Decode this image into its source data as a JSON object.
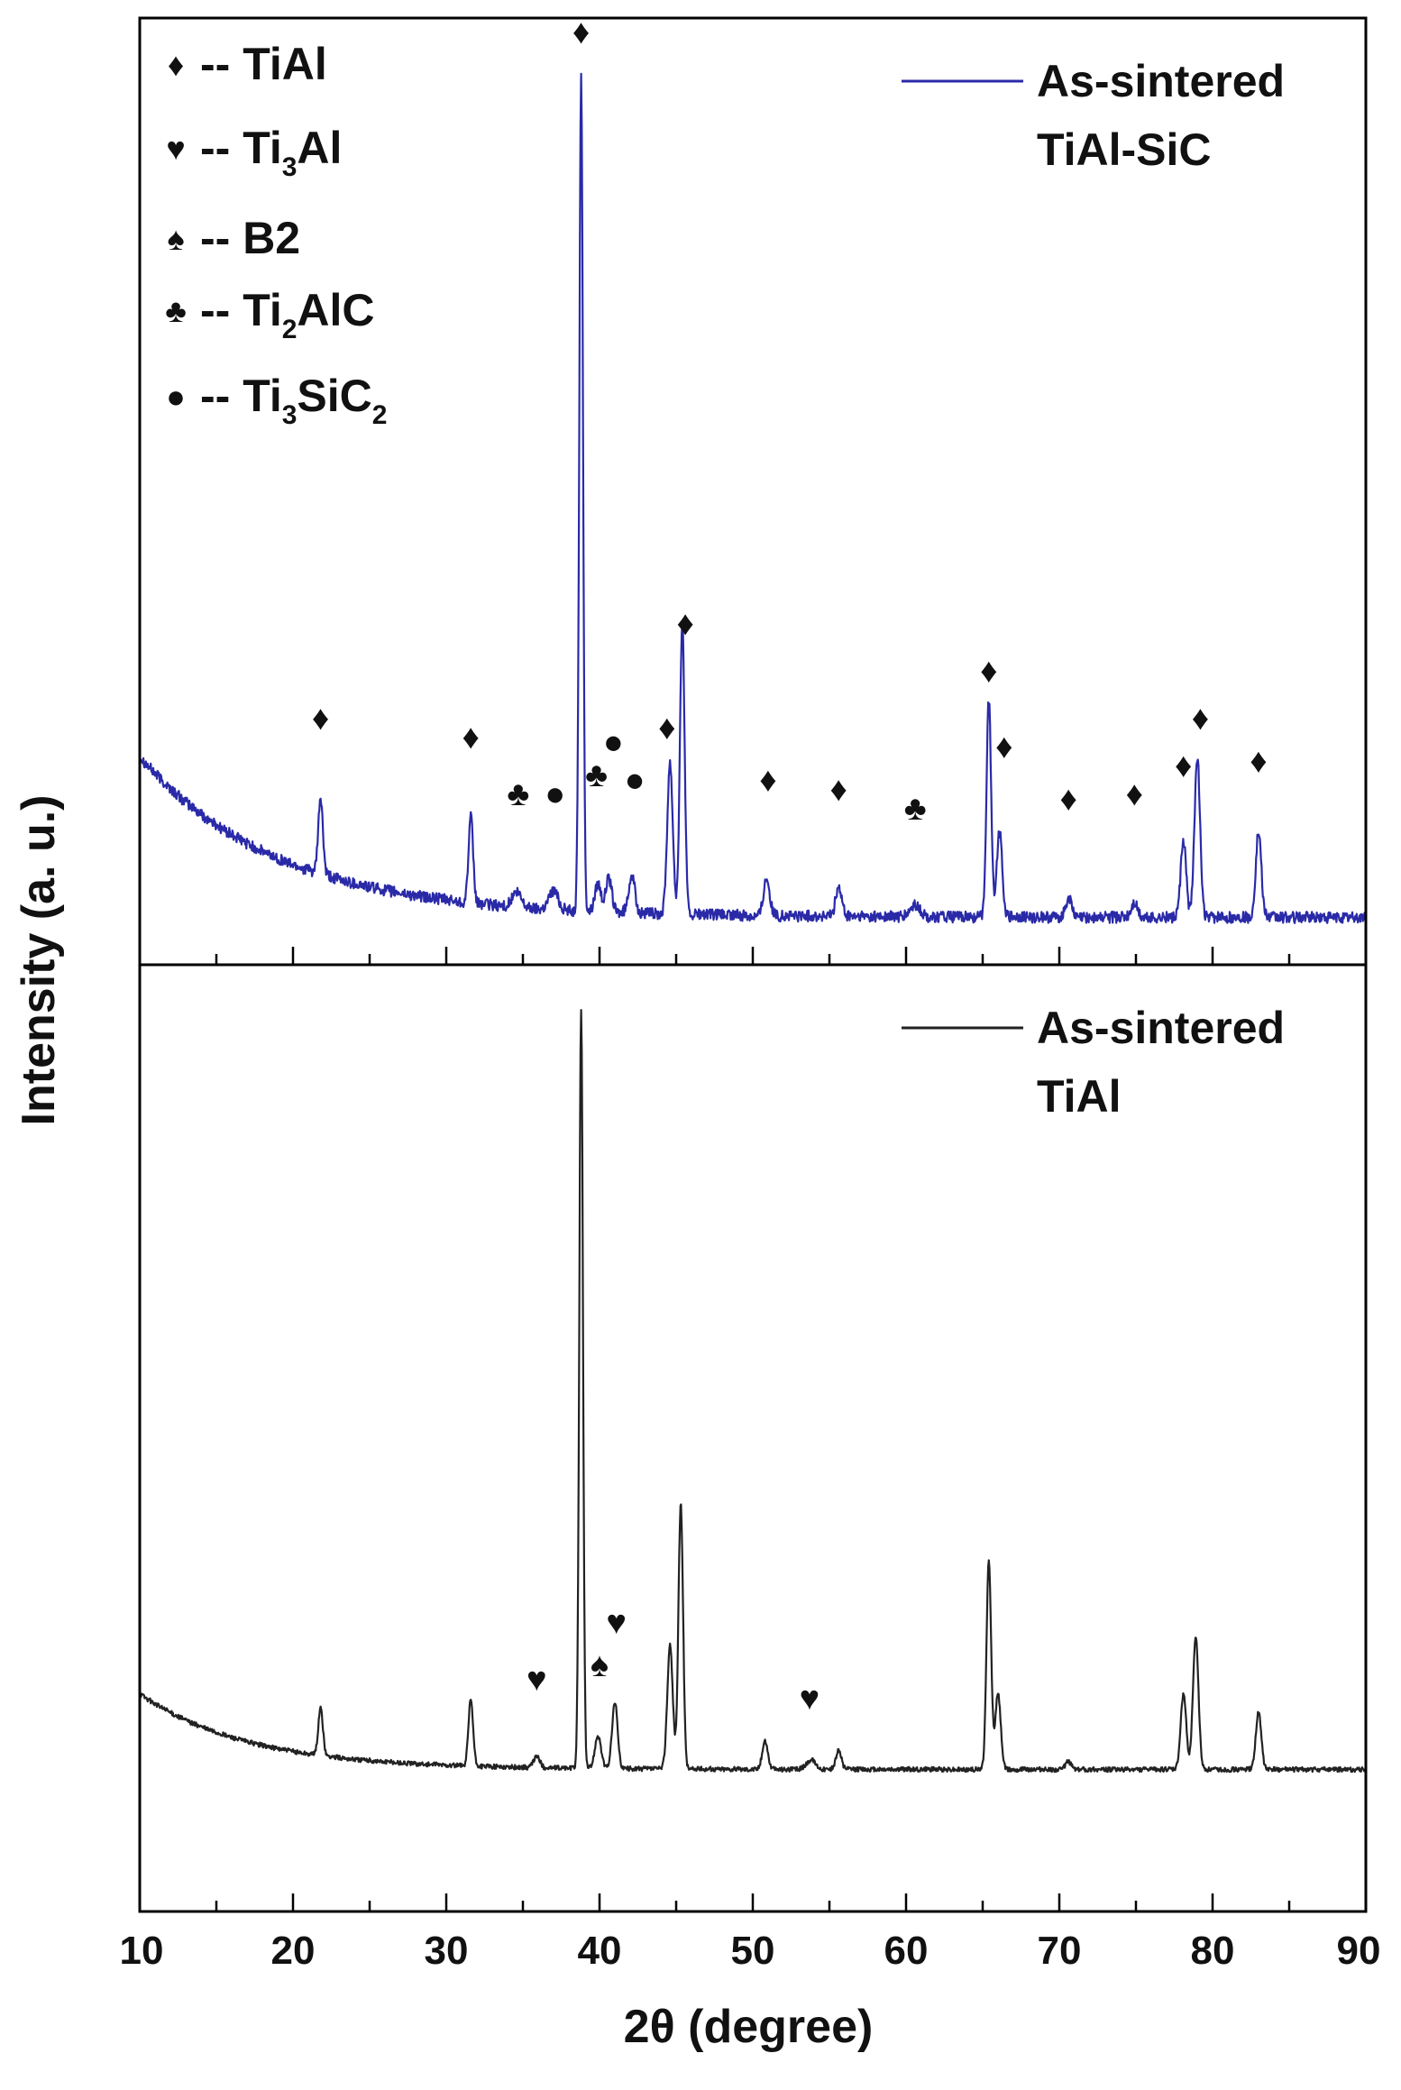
{
  "chart_data": {
    "type": "line",
    "xlabel": "2θ (degree)",
    "ylabel": "Intensity (a. u.)",
    "xlim": [
      10,
      90
    ],
    "xticks": [
      "10",
      "20",
      "30",
      "40",
      "50",
      "60",
      "70",
      "80",
      "90"
    ],
    "grid": false,
    "panels": [
      {
        "id": "top",
        "legend": {
          "line1": "As-sintered",
          "line2": "TiAl-SiC",
          "color": "#2a2aa8",
          "position": "top-right"
        },
        "series": {
          "name": "As-sintered TiAl-SiC",
          "color": "#2a2aa8",
          "baseline": {
            "decay_start": 10,
            "decay_amplitude": 0.17,
            "decay_scale": 9,
            "floor": 0.05
          },
          "peaks": [
            {
              "x": 21.8,
              "h": 0.08,
              "w": 0.15
            },
            {
              "x": 31.6,
              "h": 0.09,
              "w": 0.15
            },
            {
              "x": 34.6,
              "h": 0.015,
              "w": 0.3
            },
            {
              "x": 37.0,
              "h": 0.02,
              "w": 0.3
            },
            {
              "x": 38.8,
              "h": 0.88,
              "w": 0.12
            },
            {
              "x": 39.9,
              "h": 0.03,
              "w": 0.2
            },
            {
              "x": 40.6,
              "h": 0.035,
              "w": 0.2
            },
            {
              "x": 42.1,
              "h": 0.04,
              "w": 0.2
            },
            {
              "x": 44.6,
              "h": 0.16,
              "w": 0.18
            },
            {
              "x": 45.4,
              "h": 0.31,
              "w": 0.15
            },
            {
              "x": 50.9,
              "h": 0.04,
              "w": 0.2
            },
            {
              "x": 55.6,
              "h": 0.03,
              "w": 0.2
            },
            {
              "x": 60.6,
              "h": 0.012,
              "w": 0.3
            },
            {
              "x": 65.4,
              "h": 0.23,
              "w": 0.15
            },
            {
              "x": 66.1,
              "h": 0.09,
              "w": 0.18
            },
            {
              "x": 70.6,
              "h": 0.02,
              "w": 0.2
            },
            {
              "x": 74.9,
              "h": 0.015,
              "w": 0.2
            },
            {
              "x": 78.1,
              "h": 0.08,
              "w": 0.18
            },
            {
              "x": 79.0,
              "h": 0.17,
              "w": 0.18
            },
            {
              "x": 83.0,
              "h": 0.09,
              "w": 0.18
            }
          ]
        },
        "phase_legend": [
          {
            "symbol": "♦",
            "dash": "--",
            "name": "TiAl"
          },
          {
            "symbol": "♥",
            "dash": "--",
            "name": "Ti",
            "sub": "3",
            "rest": "Al"
          },
          {
            "symbol": "♠",
            "dash": "--",
            "name": "B2"
          },
          {
            "symbol": "♣",
            "dash": "--",
            "name": "Ti",
            "sub": "2",
            "rest": "AlC"
          },
          {
            "symbol": "●",
            "dash": "--",
            "name": "Ti",
            "sub": "3",
            "rest": "SiC",
            "sub2": "2"
          }
        ],
        "markers": [
          {
            "symbol": "♦",
            "x": 21.8,
            "y": 0.26
          },
          {
            "symbol": "♦",
            "x": 31.6,
            "y": 0.24
          },
          {
            "symbol": "♣",
            "x": 34.7,
            "y": 0.18
          },
          {
            "symbol": "●",
            "x": 37.1,
            "y": 0.18
          },
          {
            "symbol": "♦",
            "x": 38.8,
            "y": 0.985
          },
          {
            "symbol": "♣",
            "x": 39.8,
            "y": 0.2
          },
          {
            "symbol": "●",
            "x": 40.9,
            "y": 0.235
          },
          {
            "symbol": "●",
            "x": 42.3,
            "y": 0.195
          },
          {
            "symbol": "♦",
            "x": 44.4,
            "y": 0.25
          },
          {
            "symbol": "♦",
            "x": 45.6,
            "y": 0.36
          },
          {
            "symbol": "♦",
            "x": 51.0,
            "y": 0.195
          },
          {
            "symbol": "♦",
            "x": 55.6,
            "y": 0.185
          },
          {
            "symbol": "♣",
            "x": 60.6,
            "y": 0.165
          },
          {
            "symbol": "♦",
            "x": 65.4,
            "y": 0.31
          },
          {
            "symbol": "♦",
            "x": 66.4,
            "y": 0.23
          },
          {
            "symbol": "♦",
            "x": 70.6,
            "y": 0.175
          },
          {
            "symbol": "♦",
            "x": 74.9,
            "y": 0.18
          },
          {
            "symbol": "♦",
            "x": 78.1,
            "y": 0.21
          },
          {
            "symbol": "♦",
            "x": 79.2,
            "y": 0.26
          },
          {
            "symbol": "♦",
            "x": 83.0,
            "y": 0.215
          }
        ]
      },
      {
        "id": "bottom",
        "legend": {
          "line1": "As-sintered",
          "line2": "TiAl",
          "color": "#222222",
          "position": "top-right"
        },
        "series": {
          "name": "As-sintered TiAl",
          "color": "#222222",
          "baseline": {
            "decay_start": 10,
            "decay_amplitude": 0.08,
            "decay_scale": 7,
            "floor": 0.15
          },
          "peaks": [
            {
              "x": 21.8,
              "h": 0.05,
              "w": 0.15
            },
            {
              "x": 31.6,
              "h": 0.07,
              "w": 0.15
            },
            {
              "x": 35.9,
              "h": 0.012,
              "w": 0.2
            },
            {
              "x": 38.8,
              "h": 0.8,
              "w": 0.12
            },
            {
              "x": 39.9,
              "h": 0.035,
              "w": 0.2
            },
            {
              "x": 41.0,
              "h": 0.07,
              "w": 0.18
            },
            {
              "x": 44.6,
              "h": 0.13,
              "w": 0.18
            },
            {
              "x": 45.3,
              "h": 0.28,
              "w": 0.15
            },
            {
              "x": 50.8,
              "h": 0.03,
              "w": 0.18
            },
            {
              "x": 53.8,
              "h": 0.01,
              "w": 0.3
            },
            {
              "x": 55.6,
              "h": 0.02,
              "w": 0.18
            },
            {
              "x": 65.4,
              "h": 0.22,
              "w": 0.15
            },
            {
              "x": 66.0,
              "h": 0.08,
              "w": 0.18
            },
            {
              "x": 70.6,
              "h": 0.008,
              "w": 0.2
            },
            {
              "x": 78.1,
              "h": 0.08,
              "w": 0.18
            },
            {
              "x": 78.9,
              "h": 0.14,
              "w": 0.18
            },
            {
              "x": 83.0,
              "h": 0.06,
              "w": 0.18
            }
          ]
        },
        "markers": [
          {
            "symbol": "♥",
            "x": 35.9,
            "y": 0.245
          },
          {
            "symbol": "♠",
            "x": 40.0,
            "y": 0.26
          },
          {
            "symbol": "♥",
            "x": 41.1,
            "y": 0.305
          },
          {
            "symbol": "♥",
            "x": 53.7,
            "y": 0.225
          }
        ]
      }
    ]
  }
}
